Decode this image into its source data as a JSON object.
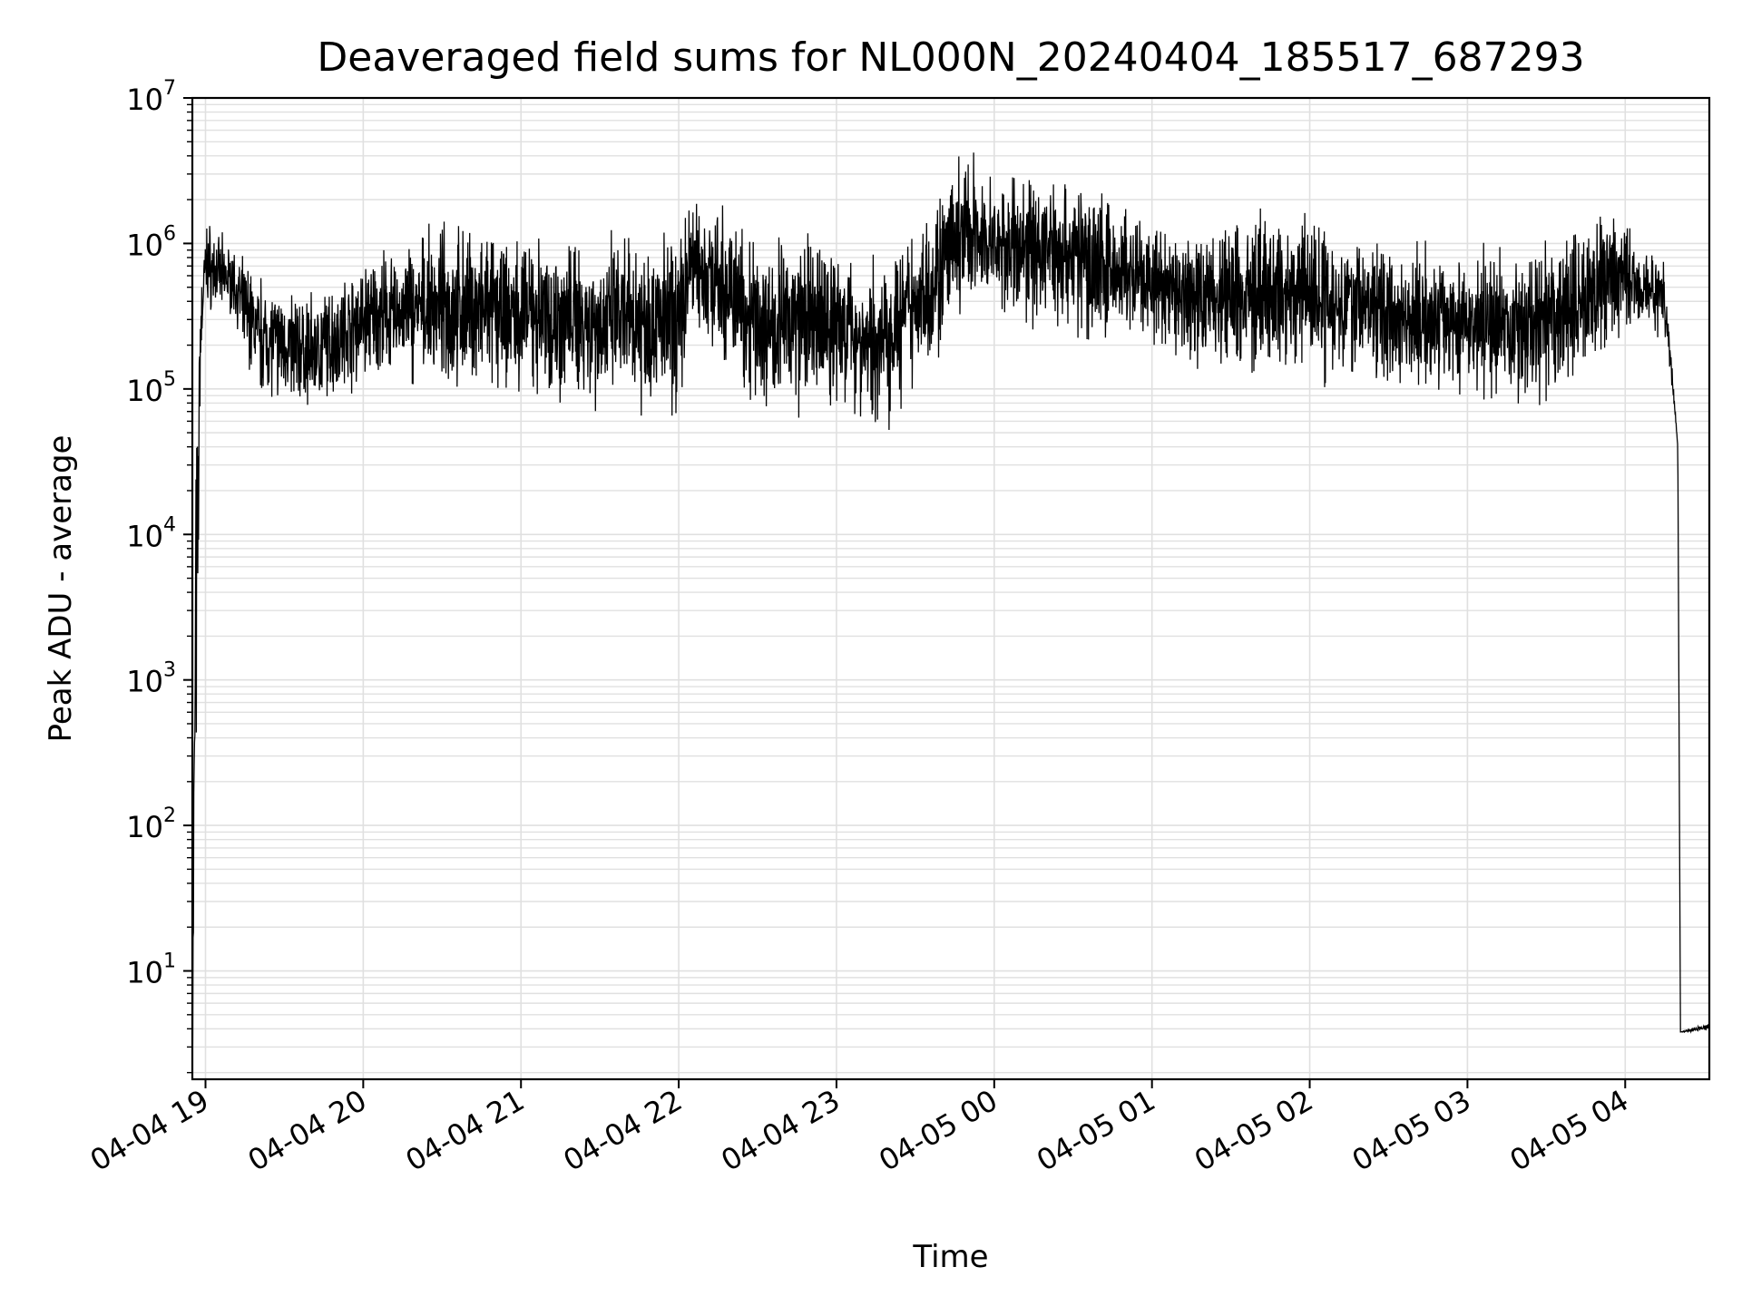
{
  "chart_data": {
    "type": "line",
    "title": "Deaveraged field sums for NL000N_20240404_185517_687293",
    "xlabel": "Time",
    "ylabel": "Peak ADU - average",
    "yscale": "log",
    "ylim": [
      1.8,
      10000000
    ],
    "xlim": [
      "2024-04-04 18:55",
      "2024-04-05 04:32"
    ],
    "grid": true,
    "line_color": "#000000",
    "grid_color": "#e0e0e0",
    "x_ticks": [
      {
        "t": "2024-04-04 19:00",
        "label": "04-04 19"
      },
      {
        "t": "2024-04-04 20:00",
        "label": "04-04 20"
      },
      {
        "t": "2024-04-04 21:00",
        "label": "04-04 21"
      },
      {
        "t": "2024-04-04 22:00",
        "label": "04-04 22"
      },
      {
        "t": "2024-04-04 23:00",
        "label": "04-04 23"
      },
      {
        "t": "2024-04-05 00:00",
        "label": "04-05 00"
      },
      {
        "t": "2024-04-05 01:00",
        "label": "04-05 01"
      },
      {
        "t": "2024-04-05 02:00",
        "label": "04-05 02"
      },
      {
        "t": "2024-04-05 03:00",
        "label": "04-05 03"
      },
      {
        "t": "2024-04-05 04:00",
        "label": "04-05 04"
      }
    ],
    "y_ticks": [
      {
        "value": 10,
        "base": "10",
        "exp": "1"
      },
      {
        "value": 100,
        "base": "10",
        "exp": "2"
      },
      {
        "value": 1000,
        "base": "10",
        "exp": "3"
      },
      {
        "value": 10000,
        "base": "10",
        "exp": "4"
      },
      {
        "value": 100000,
        "base": "10",
        "exp": "5"
      },
      {
        "value": 1000000,
        "base": "10",
        "exp": "6"
      },
      {
        "value": 10000000,
        "base": "10",
        "exp": "7"
      }
    ],
    "series": [
      {
        "envelope": [
          {
            "t": "2024-04-04 18:55",
            "low": 1.9,
            "high": 1.9
          },
          {
            "t": "2024-04-04 18:56",
            "low": 3.8,
            "high": 160000
          },
          {
            "t": "2024-04-04 18:57",
            "low": 1000,
            "high": 90000
          },
          {
            "t": "2024-04-04 18:58",
            "low": 100000,
            "high": 500000
          },
          {
            "t": "2024-04-04 19:00",
            "low": 300000,
            "high": 1700000
          },
          {
            "t": "2024-04-04 19:10",
            "low": 300000,
            "high": 1000000
          },
          {
            "t": "2024-04-04 19:20",
            "low": 80000,
            "high": 700000
          },
          {
            "t": "2024-04-04 19:40",
            "low": 60000,
            "high": 500000
          },
          {
            "t": "2024-04-04 20:00",
            "low": 100000,
            "high": 900000
          },
          {
            "t": "2024-04-04 20:30",
            "low": 90000,
            "high": 1500000
          },
          {
            "t": "2024-04-04 21:00",
            "low": 80000,
            "high": 1300000
          },
          {
            "t": "2024-04-04 21:30",
            "low": 60000,
            "high": 1400000
          },
          {
            "t": "2024-04-04 22:00",
            "low": 60000,
            "high": 1500000
          },
          {
            "t": "2024-04-04 22:05",
            "low": 200000,
            "high": 2900000
          },
          {
            "t": "2024-04-04 22:30",
            "low": 60000,
            "high": 1400000
          },
          {
            "t": "2024-04-04 23:00",
            "low": 55000,
            "high": 1400000
          },
          {
            "t": "2024-04-04 23:15",
            "low": 40000,
            "high": 900000
          },
          {
            "t": "2024-04-04 23:35",
            "low": 100000,
            "high": 2500000
          },
          {
            "t": "2024-04-04 23:50",
            "low": 300000,
            "high": 5000000
          },
          {
            "t": "2024-04-05 00:00",
            "low": 300000,
            "high": 3000000
          },
          {
            "t": "2024-04-05 00:30",
            "low": 200000,
            "high": 4000000
          },
          {
            "t": "2024-04-05 01:00",
            "low": 150000,
            "high": 1500000
          },
          {
            "t": "2024-04-05 01:30",
            "low": 100000,
            "high": 1800000
          },
          {
            "t": "2024-04-05 02:00",
            "low": 100000,
            "high": 2200000
          },
          {
            "t": "2024-04-05 02:30",
            "low": 90000,
            "high": 1200000
          },
          {
            "t": "2024-04-05 03:00",
            "low": 80000,
            "high": 1000000
          },
          {
            "t": "2024-04-05 03:30",
            "low": 60000,
            "high": 1200000
          },
          {
            "t": "2024-04-05 03:58",
            "low": 200000,
            "high": 2000000
          },
          {
            "t": "2024-04-05 04:15",
            "low": 200000,
            "high": 900000
          },
          {
            "t": "2024-04-05 04:18",
            "low": 90000,
            "high": 140000
          },
          {
            "t": "2024-04-05 04:20",
            "low": 40000,
            "high": 40000
          },
          {
            "t": "2024-04-05 04:21",
            "low": 3.8,
            "high": 3.8
          },
          {
            "t": "2024-04-05 04:32",
            "low": 3.8,
            "high": 4.5
          }
        ]
      }
    ]
  }
}
